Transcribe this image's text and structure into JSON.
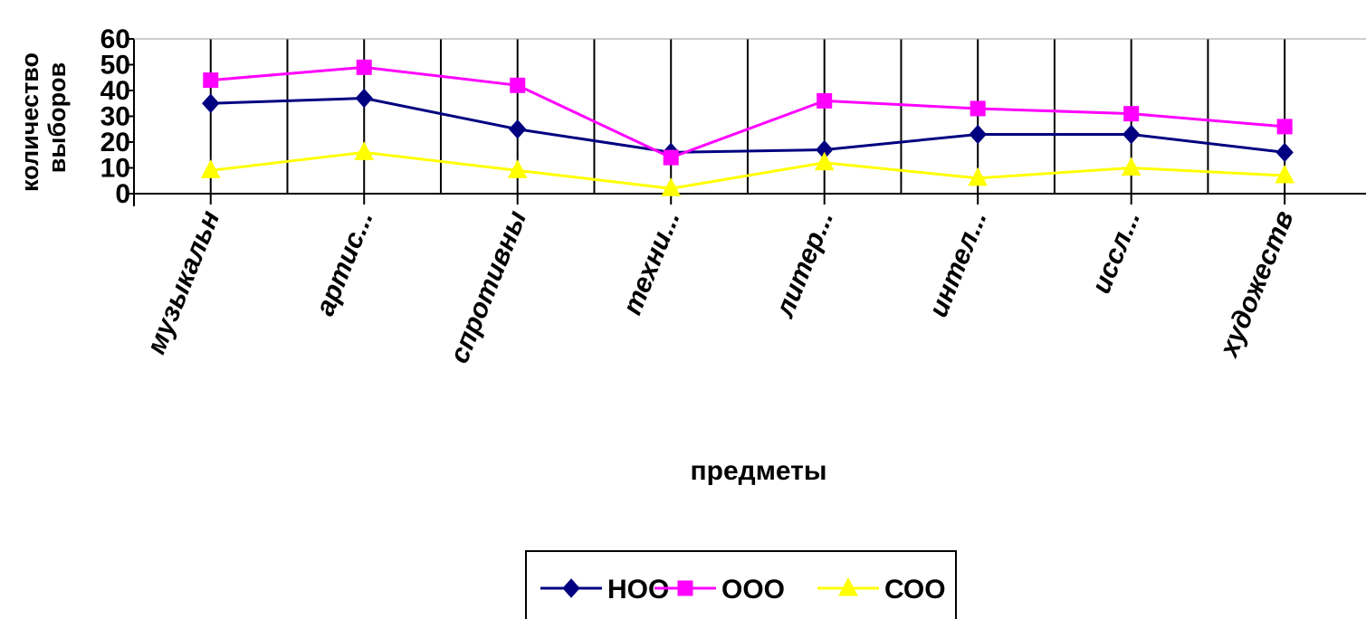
{
  "chart_data": {
    "type": "line",
    "xlabel": "предметы",
    "ylabel_lines": [
      "количество",
      "выборов"
    ],
    "ylim": [
      0,
      60
    ],
    "yticks": [
      "0",
      "10",
      "20",
      "30",
      "40",
      "50",
      "60"
    ],
    "categories": [
      "музыкальн",
      "артис...",
      "спротивны",
      "техни...",
      "литер...",
      "интел...",
      "иссл...",
      "художеств"
    ],
    "grid": "vertical",
    "legend_position": "bottom",
    "series": [
      {
        "name": "НОО",
        "color": "#000080",
        "marker": "diamond",
        "values": [
          35,
          37,
          25,
          16,
          17,
          23,
          23,
          16
        ]
      },
      {
        "name": "ООО",
        "color": "#ff00ff",
        "marker": "square",
        "values": [
          44,
          49,
          42,
          14,
          36,
          33,
          31,
          26
        ]
      },
      {
        "name": "СОО",
        "color": "#ffff00",
        "marker": "triangle",
        "values": [
          9,
          16,
          9,
          2,
          12,
          6,
          10,
          7
        ]
      }
    ]
  }
}
